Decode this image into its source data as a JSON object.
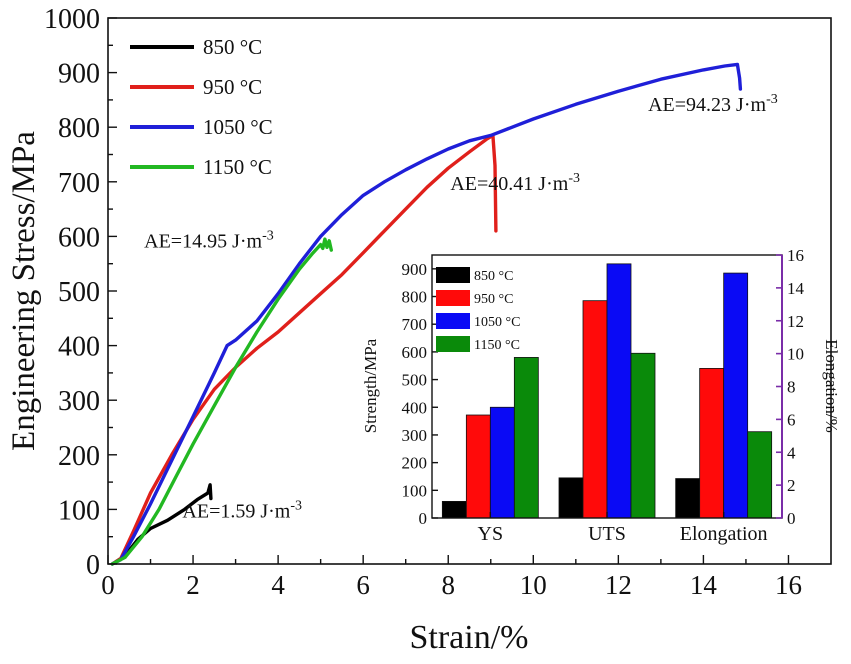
{
  "chart_data": [
    {
      "type": "line",
      "xlabel": "Strain/%",
      "ylabel": "Engineering Stress/MPa",
      "xlim": [
        0,
        17
      ],
      "ylim": [
        0,
        1000
      ],
      "xticks": [
        "0",
        "2",
        "4",
        "6",
        "8",
        "10",
        "12",
        "14",
        "16"
      ],
      "yticks": [
        "0",
        "100",
        "200",
        "300",
        "400",
        "500",
        "600",
        "700",
        "800",
        "900",
        "1000"
      ],
      "legend_position": "top-left",
      "grid": false,
      "series": [
        {
          "name": "850 °C",
          "color": "#000000",
          "points": [
            [
              0.1,
              0
            ],
            [
              0.4,
              15
            ],
            [
              0.7,
              45
            ],
            [
              1.0,
              65
            ],
            [
              1.4,
              80
            ],
            [
              1.8,
              100
            ],
            [
              2.1,
              118
            ],
            [
              2.35,
              130
            ],
            [
              2.4,
              145
            ],
            [
              2.42,
              120
            ]
          ]
        },
        {
          "name": "950 °C",
          "color": "#e0201b",
          "points": [
            [
              0.1,
              0
            ],
            [
              0.3,
              10
            ],
            [
              0.6,
              60
            ],
            [
              1.0,
              130
            ],
            [
              1.5,
              200
            ],
            [
              2.0,
              265
            ],
            [
              2.5,
              320
            ],
            [
              3.0,
              360
            ],
            [
              3.5,
              395
            ],
            [
              4.0,
              425
            ],
            [
              4.5,
              460
            ],
            [
              5.0,
              495
            ],
            [
              5.5,
              530
            ],
            [
              6.0,
              570
            ],
            [
              6.5,
              610
            ],
            [
              7.0,
              650
            ],
            [
              7.5,
              690
            ],
            [
              8.0,
              725
            ],
            [
              8.5,
              755
            ],
            [
              8.9,
              778
            ],
            [
              9.05,
              785
            ],
            [
              9.1,
              730
            ],
            [
              9.12,
              610
            ]
          ]
        },
        {
          "name": "1050 °C",
          "color": "#1f1fd8",
          "points": [
            [
              0.1,
              0
            ],
            [
              0.3,
              8
            ],
            [
              0.6,
              50
            ],
            [
              1.0,
              110
            ],
            [
              1.5,
              190
            ],
            [
              2.0,
              270
            ],
            [
              2.5,
              350
            ],
            [
              2.8,
              400
            ],
            [
              3.0,
              410
            ],
            [
              3.5,
              445
            ],
            [
              4.0,
              495
            ],
            [
              4.5,
              550
            ],
            [
              5.0,
              600
            ],
            [
              5.5,
              640
            ],
            [
              6.0,
              675
            ],
            [
              6.5,
              700
            ],
            [
              7.0,
              722
            ],
            [
              7.5,
              742
            ],
            [
              8.0,
              760
            ],
            [
              8.5,
              775
            ],
            [
              9.0,
              785
            ],
            [
              10.0,
              815
            ],
            [
              11.0,
              842
            ],
            [
              12.0,
              866
            ],
            [
              13.0,
              888
            ],
            [
              14.0,
              905
            ],
            [
              14.5,
              912
            ],
            [
              14.8,
              915
            ],
            [
              14.85,
              890
            ],
            [
              14.87,
              870
            ]
          ]
        },
        {
          "name": "1150 °C",
          "color": "#22b822",
          "points": [
            [
              0.1,
              0
            ],
            [
              0.4,
              12
            ],
            [
              0.8,
              50
            ],
            [
              1.2,
              100
            ],
            [
              1.6,
              160
            ],
            [
              2.0,
              220
            ],
            [
              2.5,
              290
            ],
            [
              3.0,
              360
            ],
            [
              3.5,
              425
            ],
            [
              4.0,
              485
            ],
            [
              4.5,
              540
            ],
            [
              4.8,
              568
            ],
            [
              5.0,
              585
            ],
            [
              5.05,
              578
            ],
            [
              5.1,
              595
            ],
            [
              5.15,
              580
            ],
            [
              5.2,
              592
            ],
            [
              5.25,
              575
            ]
          ]
        }
      ],
      "annotations": [
        {
          "text": "AE=1.59 J·m",
          "sup": "-3",
          "x": 1.75,
          "y": 85
        },
        {
          "text": "AE=14.95 J·m",
          "sup": "-3",
          "x": 0.85,
          "y": 580
        },
        {
          "text": "AE=40.41 J·m",
          "sup": "-3",
          "x": 8.05,
          "y": 685
        },
        {
          "text": "AE=94.23 J·m",
          "sup": "-3",
          "x": 12.7,
          "y": 830
        }
      ]
    },
    {
      "type": "bar",
      "ylabel": "Strength/MPa",
      "y2label": "Elongation/%",
      "ylim": [
        0,
        950
      ],
      "y2lim": [
        0,
        16
      ],
      "yticks": [
        "0",
        "100",
        "200",
        "300",
        "400",
        "500",
        "600",
        "700",
        "800",
        "900"
      ],
      "y2ticks": [
        "0",
        "2",
        "4",
        "6",
        "8",
        "10",
        "12",
        "14",
        "16"
      ],
      "categories": [
        "YS",
        "UTS",
        "Elongation"
      ],
      "legend_position": "top-left",
      "series": [
        {
          "name": "850 °C",
          "color": "#000000",
          "values": [
            60,
            145,
            2.4
          ]
        },
        {
          "name": "950 °C",
          "color": "#ff0a0a",
          "values": [
            372,
            785,
            9.1
          ]
        },
        {
          "name": "1050 °C",
          "color": "#0a0af5",
          "values": [
            400,
            918,
            14.9
          ]
        },
        {
          "name": "1150 °C",
          "color": "#0a8a0a",
          "values": [
            580,
            595,
            5.25
          ]
        }
      ]
    }
  ]
}
